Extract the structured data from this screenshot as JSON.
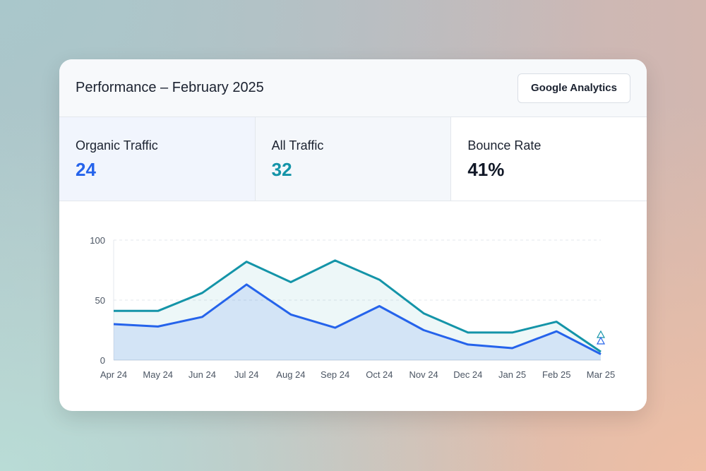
{
  "header": {
    "title": "Performance – February 2025",
    "button": "Google Analytics"
  },
  "stats": [
    {
      "label": "Organic Traffic",
      "value": "24",
      "color": "#2563eb"
    },
    {
      "label": "All Traffic",
      "value": "32",
      "color": "#1494a8"
    },
    {
      "label": "Bounce Rate",
      "value": "41%",
      "color": "#111827"
    }
  ],
  "chart_data": {
    "type": "area",
    "categories": [
      "Apr 24",
      "May 24",
      "Jun 24",
      "Jul 24",
      "Aug 24",
      "Sep 24",
      "Oct 24",
      "Nov 24",
      "Dec 24",
      "Jan 25",
      "Feb 25",
      "Mar 25"
    ],
    "ylim": [
      0,
      100
    ],
    "yticks": [
      "0",
      "50",
      "100"
    ],
    "grid": true,
    "series": [
      {
        "name": "All Traffic",
        "color": "#1494a8",
        "values": [
          41,
          41,
          56,
          82,
          65,
          83,
          67,
          39,
          23,
          23,
          32,
          7
        ]
      },
      {
        "name": "Organic Traffic",
        "color": "#2563eb",
        "values": [
          30,
          28,
          36,
          63,
          38,
          27,
          45,
          25,
          13,
          10,
          24,
          5
        ]
      }
    ]
  }
}
